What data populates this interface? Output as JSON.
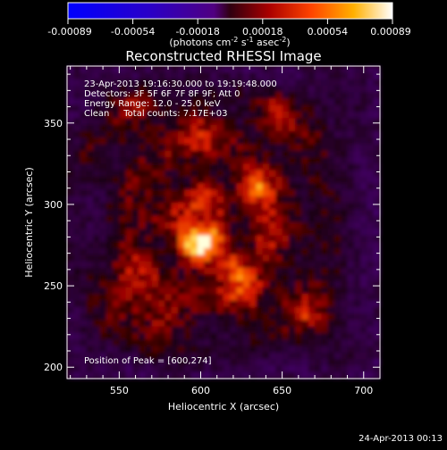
{
  "chart_data": {
    "type": "heatmap",
    "title": "Reconstructed RHESSI Image",
    "xlabel": "Heliocentric X (arcsec)",
    "ylabel": "Heliocentric Y (arcsec)",
    "xlim": [
      518,
      710
    ],
    "ylim": [
      193,
      385
    ],
    "x_ticks": [
      550,
      600,
      650,
      700
    ],
    "y_ticks": [
      200,
      250,
      300,
      350
    ],
    "colorbar": {
      "range": [
        -0.00089,
        0.00089
      ],
      "ticks": [
        "-0.00089",
        "-0.00054",
        "-0.00018",
        "0.00018",
        "0.00054",
        "0.00089"
      ],
      "unit_base": "(photons cm",
      "unit_sup1": "-2",
      "unit_mid1": " s",
      "unit_sup2": "-1",
      "unit_mid2": " asec",
      "unit_sup3": "-2",
      "unit_end": ")"
    },
    "annotations": [
      "23-Apr-2013 19:16:30.000 to 19:19:48.000",
      "Detectors: 3F 5F 6F 7F 8F 9F; Att 0",
      "Energy Range: 12.0 - 25.0 keV",
      "Clean     Total counts: 7.17E+03"
    ],
    "peak_label": "Position of Peak = [600,274]",
    "peak": [
      600,
      274
    ],
    "sources": [
      {
        "x": 600,
        "y": 274,
        "amp": 1.0,
        "sigma": 9
      },
      {
        "x": 633,
        "y": 310,
        "amp": 0.62,
        "sigma": 8
      },
      {
        "x": 647,
        "y": 356,
        "amp": 0.45,
        "sigma": 8
      },
      {
        "x": 620,
        "y": 262,
        "amp": 0.5,
        "sigma": 7
      },
      {
        "x": 627,
        "y": 245,
        "amp": 0.42,
        "sigma": 9
      },
      {
        "x": 665,
        "y": 232,
        "amp": 0.35,
        "sigma": 10
      },
      {
        "x": 555,
        "y": 250,
        "amp": 0.3,
        "sigma": 14
      },
      {
        "x": 578,
        "y": 225,
        "amp": 0.33,
        "sigma": 10
      },
      {
        "x": 600,
        "y": 345,
        "amp": 0.38,
        "sigma": 10
      },
      {
        "x": 560,
        "y": 360,
        "amp": 0.3,
        "sigma": 10
      },
      {
        "x": 530,
        "y": 330,
        "amp": 0.15,
        "sigma": 10
      },
      {
        "x": 600,
        "y": 305,
        "amp": 0.35,
        "sigma": 9
      },
      {
        "x": 640,
        "y": 285,
        "amp": 0.3,
        "sigma": 9
      },
      {
        "x": 575,
        "y": 295,
        "amp": 0.28,
        "sigma": 9
      }
    ]
  },
  "footer": {
    "timestamp": "24-Apr-2013 00:13"
  }
}
